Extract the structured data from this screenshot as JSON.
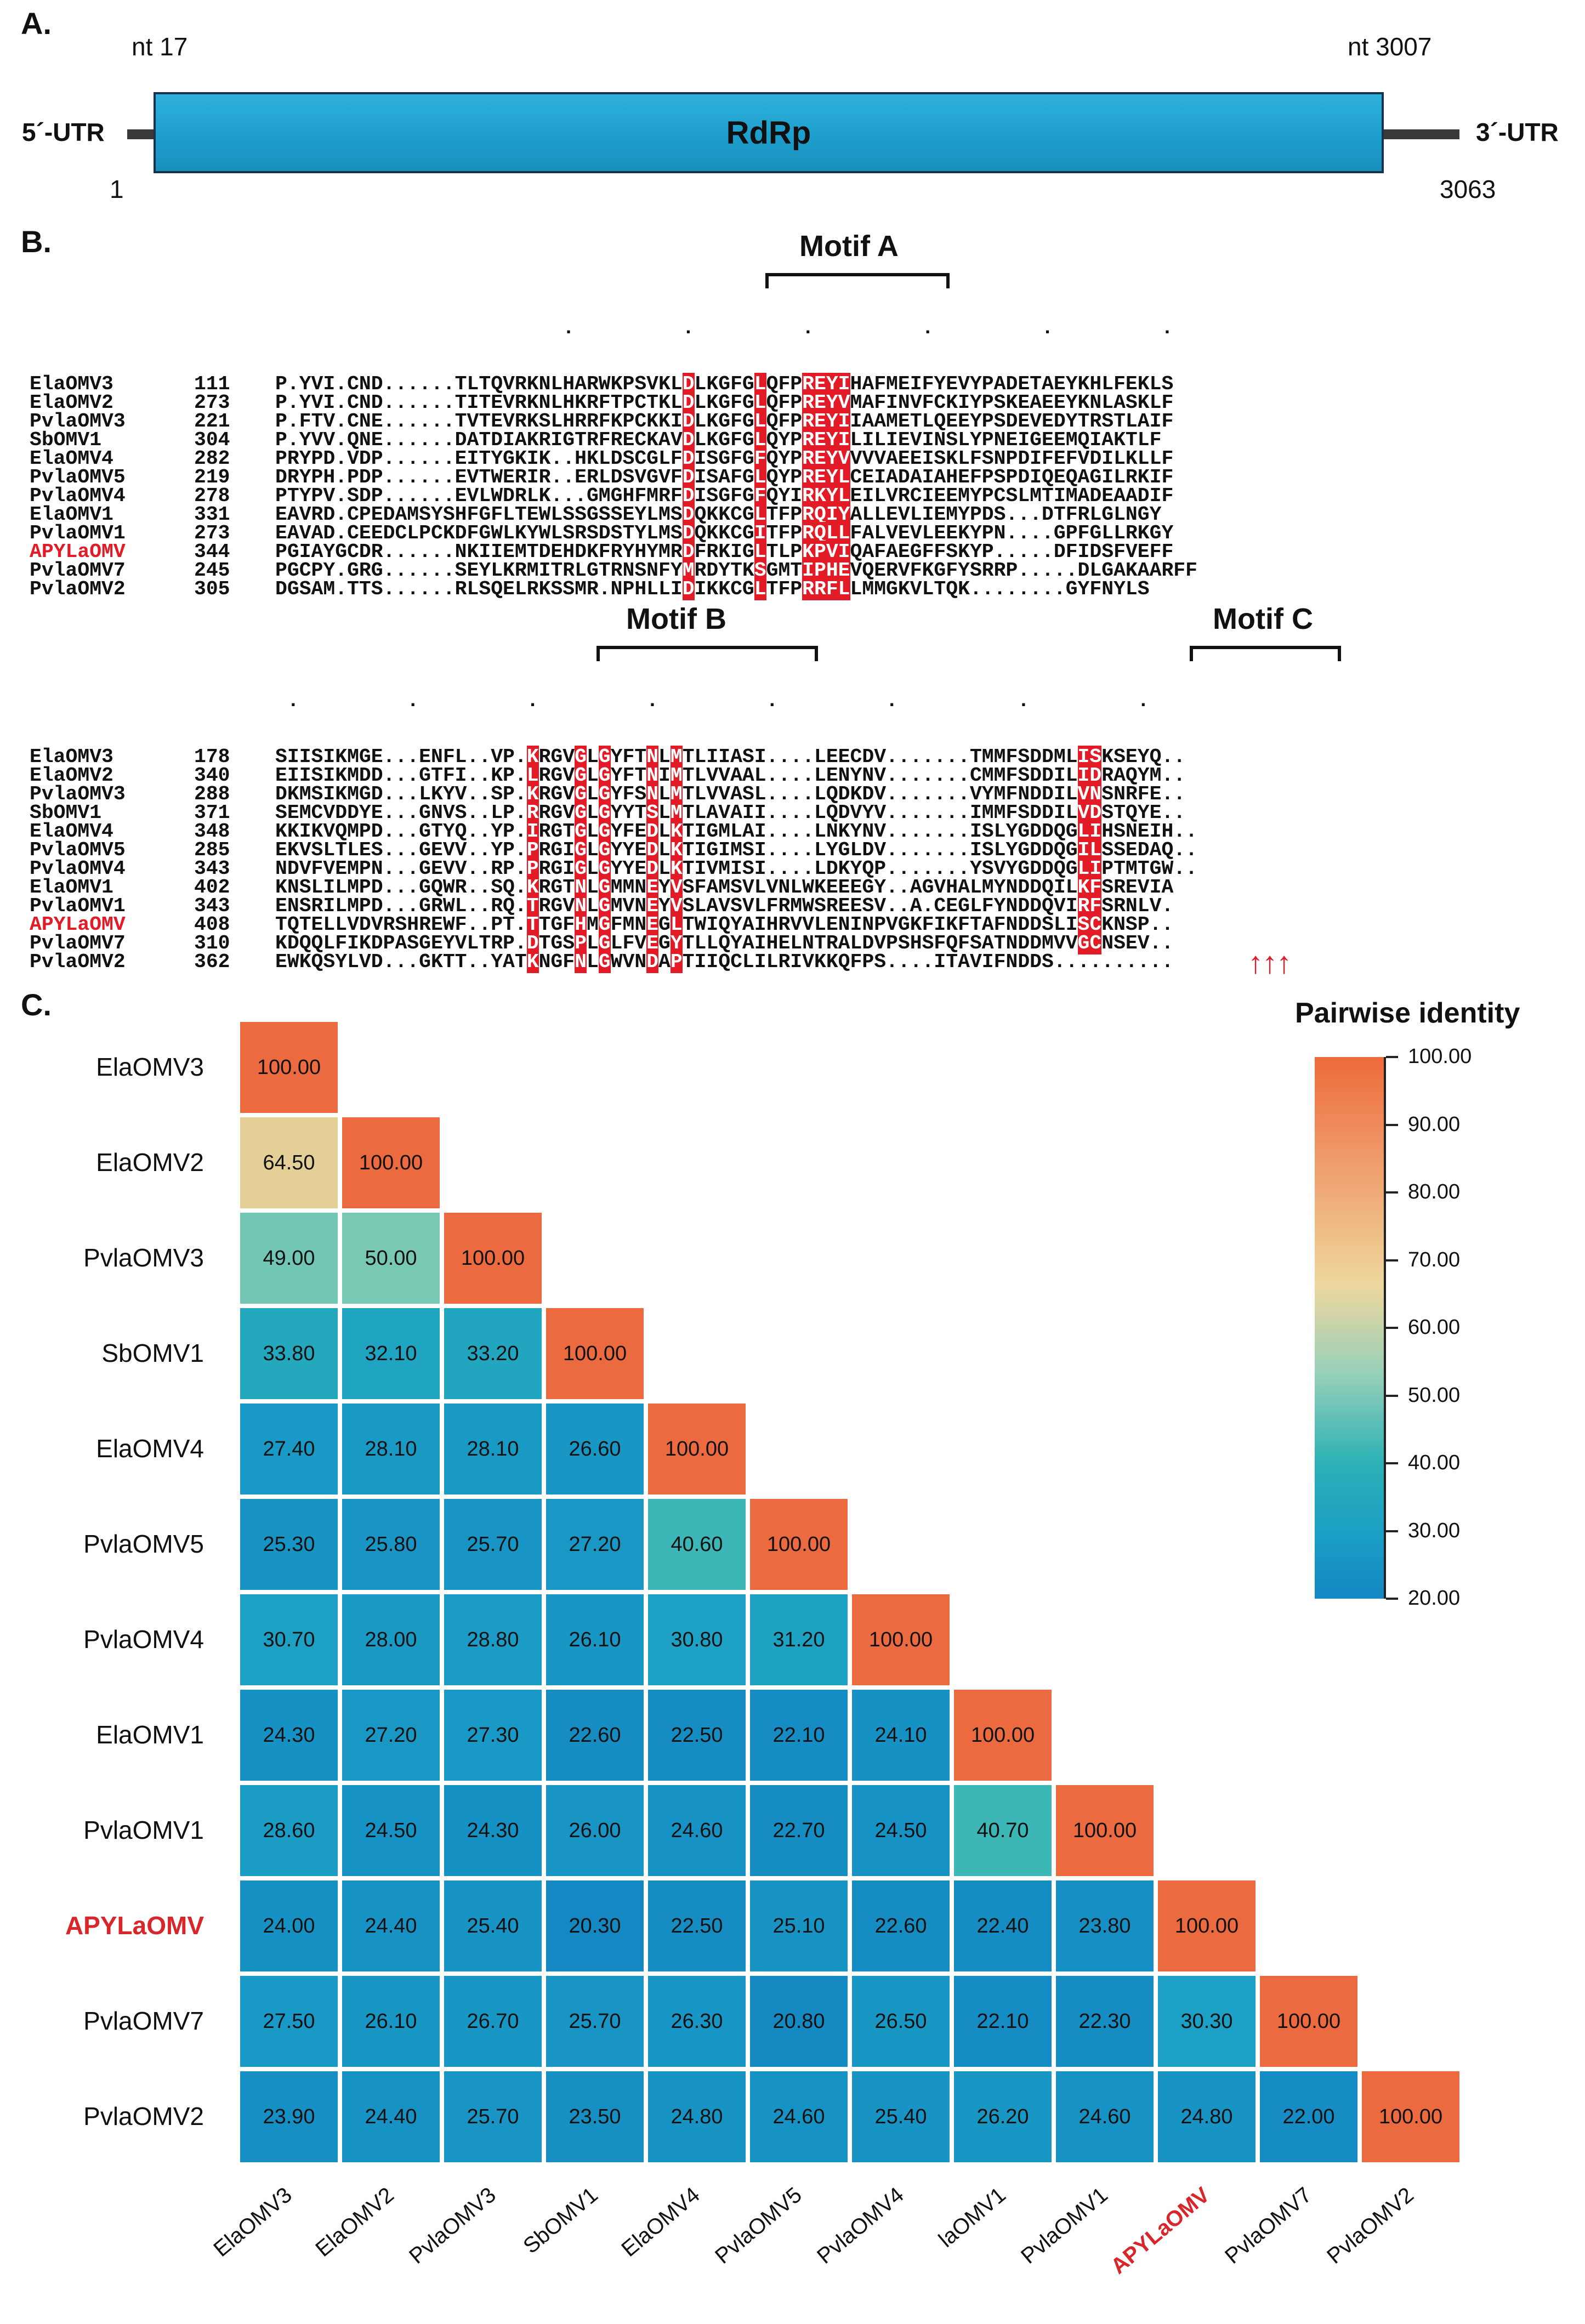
{
  "panelA": {
    "label": "A.",
    "nt_start": "nt 17",
    "nt_end": "nt 3007",
    "utr5": "5´-UTR",
    "utr3": "3´-UTR",
    "gene": "RdRp",
    "pos_start": "1",
    "pos_end": "3063"
  },
  "panelB": {
    "label": "B.",
    "block1": {
      "motif": "Motif A",
      "dots": "                        .         .         .         .         .         .",
      "rows": [
        {
          "name": "ElaOMV3",
          "pos": "111",
          "seq": "P.YVI.CND......TLTQVRKNLHARWKPSVKLDLKGFGLQFPREYIHAFMEIFYEVYPADETAEYKHLFEKLS"
        },
        {
          "name": "ElaOMV2",
          "pos": "273",
          "seq": "P.YVI.CND......TITEVRKNLHKRFTPCTKLDLKGFGLQFPREYVMAFINVFCKIYPSKEAEEYKNLASKLF"
        },
        {
          "name": "PvlaOMV3",
          "pos": "221",
          "seq": "P.FTV.CNE......TVTEVRKSLHRRFKPCKKIDLKGFGLQFPREYIIAAMETLQEEYPSDEVEDYTRSTLAIF"
        },
        {
          "name": "SbOMV1",
          "pos": "304",
          "seq": "P.YVV.QNE......DATDIAKRIGTRFRECKAVDLKGFGLQYPREYILILIEVINSLYPNEIGEEMQIAKTLF"
        },
        {
          "name": "ElaOMV4",
          "pos": "282",
          "seq": "PRYPD.VDP......EITYGKIK..HKLDSCGLFDISGFGFQYPREYVVVVAEEISKLFSNPDIFEFVDILKLLF"
        },
        {
          "name": "PvlaOMV5",
          "pos": "219",
          "seq": "DRYPH.PDP......EVTWERIR..ERLDSVGVFDISAFGLQYPREYLCEIADAIAHEFPSPDIQEQAGILRKIF"
        },
        {
          "name": "PvlaOMV4",
          "pos": "278",
          "seq": "PTYPV.SDP......EVLWDRLK...GMGHFMRFDISGFGFQYIRKYLEILVRCIEEMYPCSLMTIMADEAADIF"
        },
        {
          "name": "ElaOMV1",
          "pos": "331",
          "seq": "EAVRD.CPEDAMSYSHFGFLTEWLSSGSSEYLMSDQKKCGLTFPRQIYALLEVLIEMYPDS...DTFRLGLNGY"
        },
        {
          "name": "PvlaOMV1",
          "pos": "273",
          "seq": "EAVAD.CEEDCLPCKDFGWLKYWLSRSDSTYLMSDQKKCGITFPRQLLFALVEVLEEKYPN....GPFGLLRKGY"
        },
        {
          "name": "APYLaOMV",
          "pos": "344",
          "seq": "PGIAYGCDR......NKIIEMTDEHDKFRYHYMRDFRKIGLTLPKPVIQAFAEGFFSKYP.....DFIDSFVEFF",
          "red": true
        },
        {
          "name": "PvlaOMV7",
          "pos": "245",
          "seq": "PGCPY.GRG......SEYLKRMITRLGTRNSNFYMRDYTKSGMTIPHEVQERVFKGFYSRRP.....DLGAKAARFF"
        },
        {
          "name": "PvlaOMV2",
          "pos": "305",
          "seq": "DGSAM.TTS......RLSQELRKSSMR.NPHLLIDIKKCGLTFPRRFLLMMGKVLTQK........GYFNYLS"
        }
      ]
    },
    "block2": {
      "motifB": "Motif B",
      "motifC": "Motif C",
      "dots": " .         .         .         .         .         .          .         .",
      "rows": [
        {
          "name": "ElaOMV3",
          "pos": "178",
          "seq": "SIISIKMGE...ENFL..VP.KRGVGLGYFTNLMTLIIASI....LEECDV.......TMMFSDDMLISKSEYQ.."
        },
        {
          "name": "ElaOMV2",
          "pos": "340",
          "seq": "EIISIKMDD...GTFI..KP.LRGVGLGYFTNIMTLVVAAL....LENYNV.......CMMFSDDILIDRAQYM.."
        },
        {
          "name": "PvlaOMV3",
          "pos": "288",
          "seq": "DKMSIKMGD...LKYV..SP.KRGVGLGYFSNLMTLVVASL....LQDKDV.......VYMFNDDILVNSNRFE.."
        },
        {
          "name": "SbOMV1",
          "pos": "371",
          "seq": "SEMCVDDYE...GNVS..LP.RRGVGLGYYTSLMTLAVAII....LQDVYV.......IMMFSDDILVDSTQYE.."
        },
        {
          "name": "ElaOMV4",
          "pos": "348",
          "seq": "KKIKVQMPD...GTYQ..YP.IRGTGLGYFEDLKTIGMLAI....LNKYNV.......ISLYGDDQGLIHSNEIH.."
        },
        {
          "name": "PvlaOMV5",
          "pos": "285",
          "seq": "EKVSLTLES...GEVV..YP.PRGIGLGYYEDLKTIGIMSI....LYGLDV.......ISLYGDDQGILSSEDAQ.."
        },
        {
          "name": "PvlaOMV4",
          "pos": "343",
          "seq": "NDVFVEMPN...GEVV..RP.PRGIGLGYYEDLKTIVMISI....LDKYQP.......YSVYGDDQGLIPTMTGW.."
        },
        {
          "name": "ElaOMV1",
          "pos": "402",
          "seq": "KNSLILMPD...GQWR..SQ.KRGTNLGMMNEYVSFAMSVLVNLWKEEEGY..AGVHALMYNDDQILKFSREVIA"
        },
        {
          "name": "PvlaOMV1",
          "pos": "343",
          "seq": "ENSRILMPD...GRWL..RQ.TRGVNLGMVNEYVSLAVSVLFRMWSREESV..A.CEGLFYNDDQVIRFSRNLV."
        },
        {
          "name": "APYLaOMV",
          "pos": "408",
          "seq": "TQTELLVDVRSHREWF..PT.TTGFHMGFMNEGLTWIQYAIHRVVLENINPVGKFIKFTAFNDDSLISCKNSP..",
          "red": true
        },
        {
          "name": "PvlaOMV7",
          "pos": "310",
          "seq": "KDQQLFIKDPASGEYVLTRP.DTGSPLGLFVEGYTLLQYAIHELNTRALDVPSHSFQFSATNDDMVVGCNSEV.."
        },
        {
          "name": "PvlaOMV2",
          "pos": "362",
          "seq": "EWKQSYLVD...GKTT..YATKNGFNLGWVNDAPTIIQCLILRIVKKQFPS....ITAVIFNDDS.........."
        }
      ],
      "arrows": "↑↑↑"
    }
  },
  "panelC": {
    "label": "C.",
    "legend_title": "Pairwise identity",
    "legend_ticks": [
      "100.00",
      "90.00",
      "80.00",
      "70.00",
      "60.00",
      "50.00",
      "40.00",
      "30.00",
      "20.00"
    ],
    "row_labels": [
      "ElaOMV3",
      "ElaOMV2",
      "PvlaOMV3",
      "SbOMV1",
      "ElaOMV4",
      "PvlaOMV5",
      "PvlaOMV4",
      "ElaOMV1",
      "PvlaOMV1",
      "APYLaOMV",
      "PvlaOMV7",
      "PvlaOMV2"
    ],
    "col_labels": [
      "ElaOMV3",
      "ElaOMV2",
      "PvlaOMV3",
      "SbOMV1",
      "ElaOMV4",
      "PvlaOMV5",
      "PvlaOMV4",
      "laOMV1",
      "PvlaOMV1",
      "APYLaOMV",
      "PvlaOMV7",
      "PvlaOMV2"
    ],
    "highlight": "APYLaOMV",
    "colors": {
      "high": "#ec6a3f",
      "highlight_text": "#d9262a"
    }
  },
  "chart_data": {
    "type": "heatmap",
    "title": "Pairwise identity",
    "rows": [
      "ElaOMV3",
      "ElaOMV2",
      "PvlaOMV3",
      "SbOMV1",
      "ElaOMV4",
      "PvlaOMV5",
      "PvlaOMV4",
      "ElaOMV1",
      "PvlaOMV1",
      "APYLaOMV",
      "PvlaOMV7",
      "PvlaOMV2"
    ],
    "columns": [
      "ElaOMV3",
      "ElaOMV2",
      "PvlaOMV3",
      "SbOMV1",
      "ElaOMV4",
      "PvlaOMV5",
      "PvlaOMV4",
      "laOMV1",
      "PvlaOMV1",
      "APYLaOMV",
      "PvlaOMV7",
      "PvlaOMV2"
    ],
    "values": [
      [
        "100.00"
      ],
      [
        "64.50",
        "100.00"
      ],
      [
        "49.00",
        "50.00",
        "100.00"
      ],
      [
        "33.80",
        "32.10",
        "33.20",
        "100.00"
      ],
      [
        "27.40",
        "28.10",
        "28.10",
        "26.60",
        "100.00"
      ],
      [
        "25.30",
        "25.80",
        "25.70",
        "27.20",
        "40.60",
        "100.00"
      ],
      [
        "30.70",
        "28.00",
        "28.80",
        "26.10",
        "30.80",
        "31.20",
        "100.00"
      ],
      [
        "24.30",
        "27.20",
        "27.30",
        "22.60",
        "22.50",
        "22.10",
        "24.10",
        "100.00"
      ],
      [
        "28.60",
        "24.50",
        "24.30",
        "26.00",
        "24.60",
        "22.70",
        "24.50",
        "40.70",
        "100.00"
      ],
      [
        "24.00",
        "24.40",
        "25.40",
        "20.30",
        "22.50",
        "25.10",
        "22.60",
        "22.40",
        "23.80",
        "100.00"
      ],
      [
        "27.50",
        "26.10",
        "26.70",
        "25.70",
        "26.30",
        "20.80",
        "26.50",
        "22.10",
        "22.30",
        "30.30",
        "100.00"
      ],
      [
        "23.90",
        "24.40",
        "25.70",
        "23.50",
        "24.80",
        "24.60",
        "25.40",
        "26.20",
        "24.60",
        "24.80",
        "22.00",
        "100.00"
      ]
    ],
    "color_range": [
      20,
      100
    ]
  }
}
